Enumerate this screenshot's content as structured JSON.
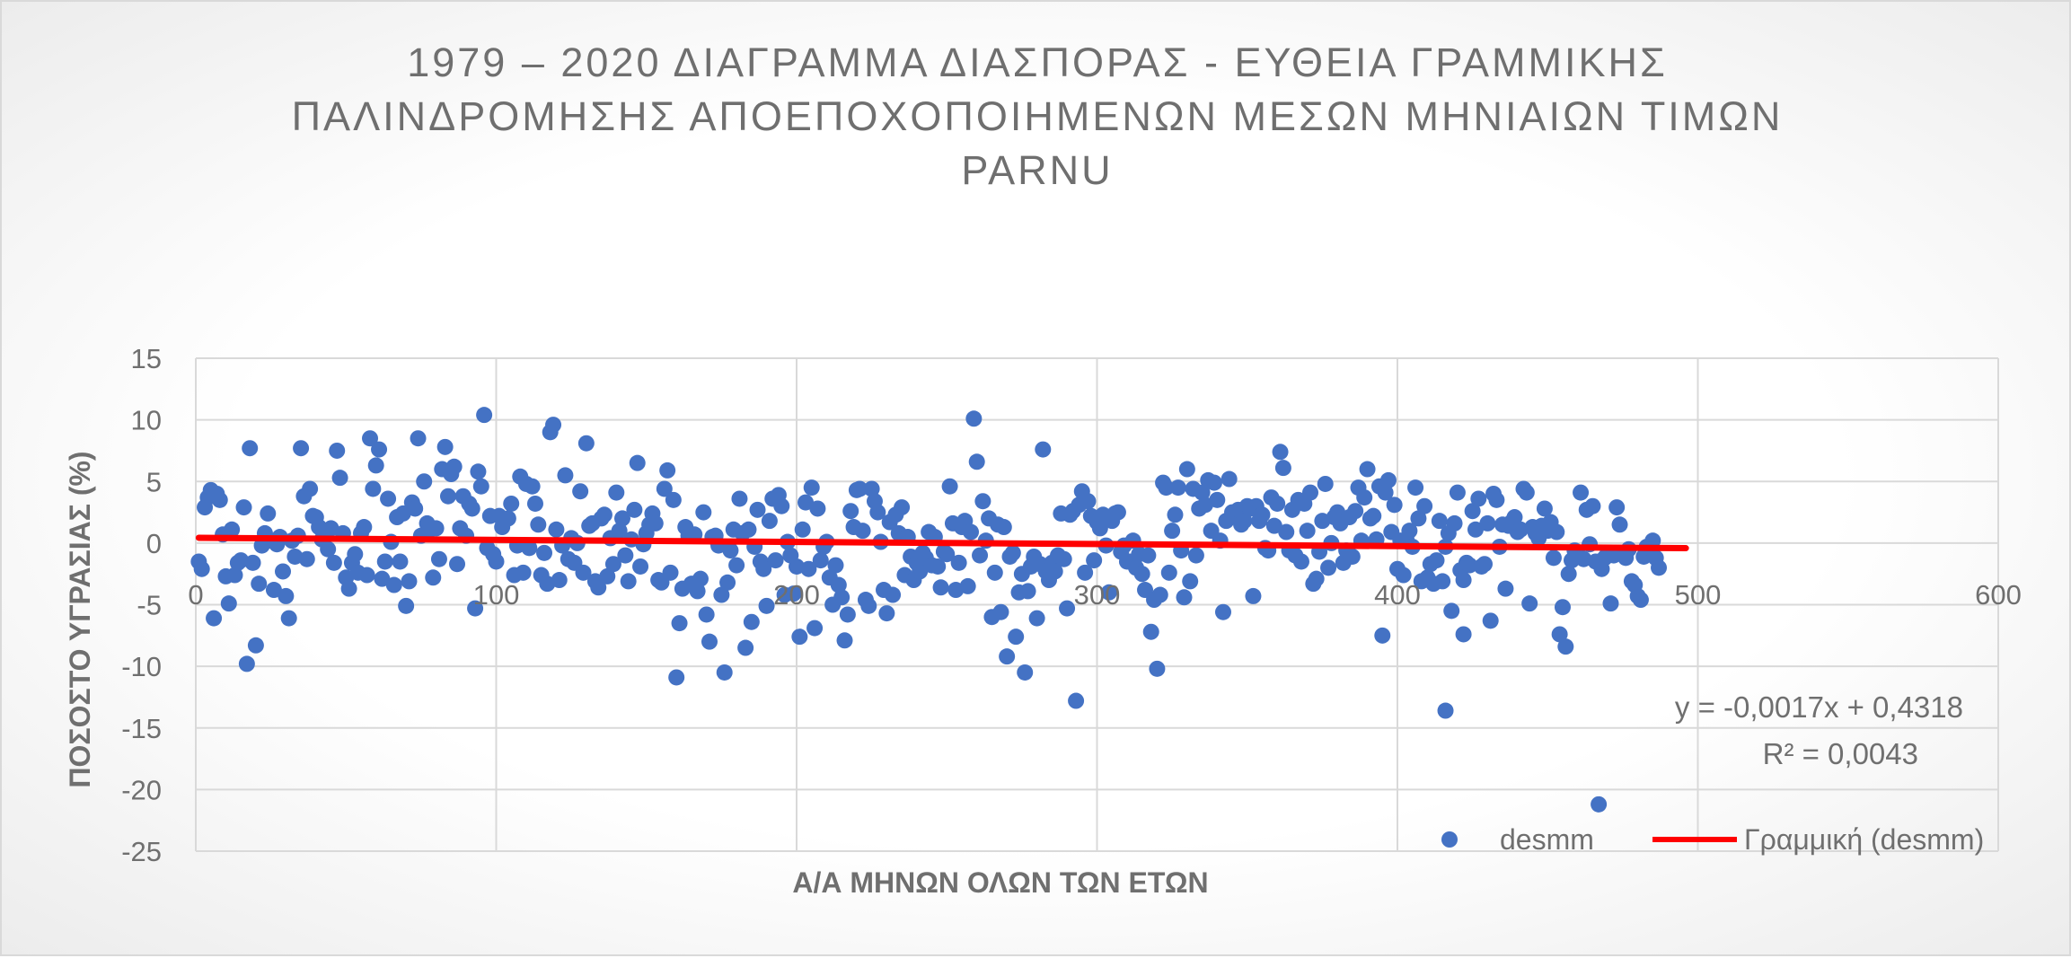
{
  "chart_data": {
    "type": "scatter",
    "title_lines": [
      "1979 – 2020 ΔΙΑΓΡΑΜΜΑ ΔΙΑΣΠΟΡΑΣ - ΕΥΘΕΙΑ ΓΡΑΜΜΙΚΗΣ",
      "ΠΑΛΙΝΔΡΟΜΗΣΗΣ ΑΠΟΕΠΟΧΟΠΟΙΗΜΕΝΩΝ ΜΕΣΩΝ ΜΗΝΙΑΙΩΝ ΤΙΜΩΝ",
      "PARNU"
    ],
    "xlabel": "Α/Α ΜΗΝΩΝ ΟΛΩΝ ΤΩΝ ΕΤΩΝ",
    "ylabel": "ΠΟΣΟΣΤΟ ΥΓΡΑΣΙΑΣ (%)",
    "xlim": [
      0,
      600
    ],
    "ylim": [
      -25,
      15
    ],
    "x_ticks": [
      0,
      100,
      200,
      300,
      400,
      500,
      600
    ],
    "y_ticks": [
      15,
      10,
      5,
      0,
      -5,
      -10,
      -15,
      -20,
      -25
    ],
    "grid": true,
    "legend_position": "bottom-right",
    "series": [
      {
        "name": "desmm",
        "color": "#4472c4",
        "marker": "circle",
        "n_points": 496,
        "x_start": 1,
        "x_step": 1,
        "y": [
          -1.5,
          -2.1,
          2.9,
          3.7,
          4.3,
          -6.1,
          4.0,
          3.5,
          0.7,
          -2.7,
          -4.9,
          1.1,
          -2.6,
          -1.6,
          -1.4,
          2.9,
          -9.8,
          7.7,
          -1.6,
          -8.3,
          -3.3,
          -0.2,
          0.8,
          2.4,
          0.2,
          -3.8,
          -0.1,
          0.5,
          -2.3,
          -4.3,
          -6.1,
          0.2,
          -1.1,
          0.6,
          7.7,
          3.8,
          -1.3,
          4.4,
          2.2,
          2.1,
          1.3,
          0.3,
          0.8,
          -0.5,
          1.2,
          -1.6,
          7.5,
          5.3,
          0.8,
          -2.8,
          -3.7,
          -1.6,
          -0.9,
          -2.4,
          0.8,
          1.3,
          -2.6,
          8.5,
          4.4,
          6.3,
          7.6,
          -2.9,
          -1.5,
          3.6,
          0.1,
          -3.4,
          2.1,
          -1.5,
          2.4,
          -5.1,
          -3.1,
          3.3,
          2.8,
          8.5,
          0.6,
          5.0,
          1.6,
          1.1,
          -2.8,
          1.2,
          -1.3,
          6.0,
          7.8,
          3.8,
          5.6,
          6.2,
          -1.7,
          1.2,
          3.8,
          0.6,
          3.2,
          2.8,
          -5.3,
          5.8,
          4.6,
          10.4,
          -0.4,
          2.2,
          -0.9,
          -1.5,
          2.2,
          1.3,
          1.9,
          2.0,
          3.2,
          -2.6,
          -0.2,
          5.4,
          -2.4,
          4.8,
          -0.4,
          4.6,
          3.2,
          1.5,
          -2.6,
          -0.8,
          -3.3,
          9.0,
          9.6,
          1.1,
          -3.0,
          -0.2,
          5.5,
          -1.3,
          0.4,
          -1.6,
          0.0,
          4.2,
          -2.4,
          8.1,
          1.4,
          1.6,
          -3.1,
          -3.6,
          2.0,
          2.3,
          -2.7,
          0.4,
          -1.7,
          4.1,
          1.0,
          2.0,
          -1.0,
          -3.1,
          0.3,
          2.7,
          6.5,
          -1.9,
          -0.1,
          0.8,
          1.5,
          2.4,
          1.6,
          -3.0,
          -3.2,
          4.4,
          5.9,
          -2.4,
          3.5,
          -10.9,
          -6.5,
          -3.7,
          1.3,
          0.6,
          -3.3,
          0.7,
          -3.9,
          -2.9,
          2.5,
          -5.8,
          -8.0,
          0.5,
          0.6,
          -0.2,
          -4.2,
          -10.5,
          -3.2,
          -0.6,
          1.1,
          -1.8,
          3.6,
          0.8,
          -8.5,
          1.1,
          -6.4,
          -0.3,
          2.7,
          -1.5,
          -2.1,
          -5.1,
          1.8,
          3.6,
          -1.4,
          3.9,
          3.0,
          -4.2,
          0.1,
          -1.0,
          -4.1,
          -1.9,
          -7.6,
          1.1,
          3.3,
          -2.1,
          4.5,
          -6.9,
          2.8,
          -1.4,
          -0.3,
          0.1,
          -2.8,
          -5.0,
          -1.8,
          -3.4,
          -4.4,
          -7.9,
          -5.8,
          2.6,
          1.3,
          4.3,
          4.4,
          1.0,
          -4.6,
          -5.1,
          4.4,
          3.4,
          2.5,
          0.1,
          -3.8,
          -5.7,
          1.7,
          -4.2,
          2.3,
          0.8,
          2.9,
          -2.6,
          0.5,
          -1.1,
          -3.0,
          -1.6,
          -2.3,
          -0.8,
          -1.2,
          0.9,
          -1.8,
          0.5,
          -1.9,
          -3.6,
          -0.7,
          -0.9,
          4.6,
          1.6,
          -3.8,
          -1.6,
          1.3,
          1.8,
          -3.5,
          0.9,
          10.1,
          6.6,
          -1.0,
          3.4,
          0.2,
          2.0,
          -6.0,
          -2.4,
          1.5,
          -5.6,
          1.3,
          -9.2,
          -1.1,
          -0.8,
          -7.6,
          -4.0,
          -2.5,
          -10.5,
          -3.9,
          -1.9,
          -1.1,
          -6.1,
          -1.7,
          7.6,
          -2.3,
          -3.0,
          -1.6,
          -2.3,
          -1.0,
          2.4,
          -1.3,
          -5.3,
          2.3,
          2.6,
          -12.8,
          3.1,
          4.2,
          -2.4,
          3.4,
          2.2,
          -1.4,
          1.7,
          1.2,
          2.3,
          -0.2,
          -4.0,
          1.8,
          2.4,
          2.5,
          -0.7,
          -0.2,
          -1.5,
          -1.5,
          0.2,
          -2.0,
          -0.9,
          -2.5,
          -3.8,
          -1.0,
          -7.2,
          -4.6,
          -10.2,
          -4.2,
          4.9,
          4.5,
          -2.4,
          1.0,
          2.3,
          4.5,
          -0.6,
          -4.4,
          6.0,
          -3.1,
          4.4,
          -1.0,
          2.8,
          4.1,
          3.1,
          5.1,
          1.0,
          4.9,
          3.5,
          0.2,
          -5.6,
          1.8,
          5.2,
          2.5,
          2.3,
          2.7,
          1.5,
          1.8,
          3.0,
          2.8,
          -4.3,
          3.0,
          1.8,
          2.3,
          -0.4,
          -0.6,
          3.7,
          1.4,
          3.2,
          7.4,
          6.1,
          0.9,
          -0.6,
          2.7,
          -1.0,
          3.5,
          -1.5,
          3.2,
          1.0,
          4.1,
          -3.3,
          -2.9,
          -0.7,
          1.8,
          4.8,
          -2.0,
          0.0,
          2.1,
          2.5,
          1.6,
          -1.6,
          -0.6,
          2.1,
          -1.1,
          2.6,
          4.5,
          0.2,
          3.7,
          6.0,
          2.0,
          2.2,
          0.3,
          4.6,
          -7.5,
          4.1,
          5.1,
          0.9,
          3.1,
          -2.1,
          0.2,
          -2.6,
          0.3,
          1.0,
          -0.3,
          4.5,
          2.0,
          -3.1,
          3.0,
          -2.8,
          -1.7,
          -3.3,
          -1.4,
          1.8,
          -3.1,
          -0.3,
          0.8,
          -5.5,
          1.6,
          4.1,
          -2.2,
          -7.4,
          -1.6,
          -1.8,
          2.6,
          1.1,
          3.6,
          -1.9,
          -1.7,
          1.6,
          -6.3,
          4.0,
          3.5,
          -0.3,
          1.5,
          -3.7,
          1.4,
          1.7,
          2.1,
          0.9,
          1.1,
          4.4,
          4.1,
          -4.9,
          1.3,
          0.8,
          0.4,
          1.4,
          2.8,
          1.0,
          1.7,
          -1.2,
          0.9,
          -7.4,
          -5.2,
          -8.4,
          -2.5,
          -1.4,
          -0.6,
          -0.9,
          4.1,
          -1.3,
          2.7,
          -0.1,
          3.0,
          -1.5,
          -21.2,
          -2.1,
          -1.2,
          -0.8,
          -4.9,
          -1.0,
          2.9,
          1.5,
          -0.8,
          -1.2,
          -0.5,
          -3.1,
          -3.4,
          -4.3,
          -4.6,
          -1.1,
          -0.3,
          -0.4,
          0.2,
          -1.2,
          -2.0
        ]
      }
    ],
    "extra_points": [
      {
        "x": 416,
        "y": -13.6
      },
      {
        "x": 422,
        "y": -3.0
      }
    ],
    "trendline": {
      "name": "Γραμμική (desmm)",
      "color": "#ff0000",
      "slope": -0.0017,
      "intercept": 0.4318,
      "x_range": [
        1,
        496
      ],
      "equation": "y = -0,0017x + 0,4318",
      "r_squared": "R² = 0,0043"
    },
    "legend": [
      {
        "label": "desmm",
        "marker": "circle",
        "color": "#4472c4"
      },
      {
        "label": "Γραμμική (desmm)",
        "marker": "line",
        "color": "#ff0000"
      }
    ]
  }
}
